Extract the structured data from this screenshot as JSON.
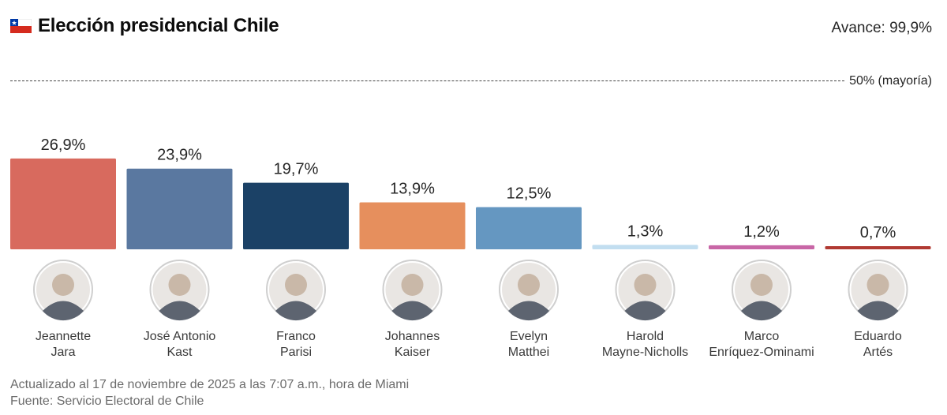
{
  "header": {
    "title": "Elección presidencial Chile",
    "progress": "Avance: 99,9%",
    "flag_icon": "chile-flag-icon"
  },
  "majority": {
    "label": "50% (mayoría)",
    "value": 50
  },
  "chart_data": {
    "type": "bar",
    "title": "Elección presidencial Chile",
    "xlabel": "",
    "ylabel": "",
    "ylim": [
      0,
      50
    ],
    "grid": false,
    "categories": [
      [
        "Jeannette",
        "Jara"
      ],
      [
        "José Antonio",
        "Kast"
      ],
      [
        "Franco",
        "Parisi"
      ],
      [
        "Johannes",
        "Kaiser"
      ],
      [
        "Evelyn",
        "Matthei"
      ],
      [
        "Harold",
        "Mayne-Nicholls"
      ],
      [
        "Marco",
        "Enríquez-Ominami"
      ],
      [
        "Eduardo",
        "Artés"
      ]
    ],
    "values": [
      26.9,
      23.9,
      19.7,
      13.9,
      12.5,
      1.3,
      1.2,
      0.7
    ],
    "value_labels": [
      "26,9%",
      "23,9%",
      "19,7%",
      "13,9%",
      "12,5%",
      "1,3%",
      "1,2%",
      "0,7%"
    ],
    "colors": [
      "#d86a5e",
      "#5a78a0",
      "#1b4166",
      "#e68f5d",
      "#6597c1",
      "#c2def0",
      "#c866a6",
      "#b13a33"
    ],
    "reference_line": {
      "value": 50,
      "label": "50% (mayoría)"
    }
  },
  "footer": {
    "updated": "Actualizado al 17 de noviembre de 2025 a las 7:07 a.m., hora de Miami",
    "source": "Fuente: Servicio Electoral de Chile"
  }
}
